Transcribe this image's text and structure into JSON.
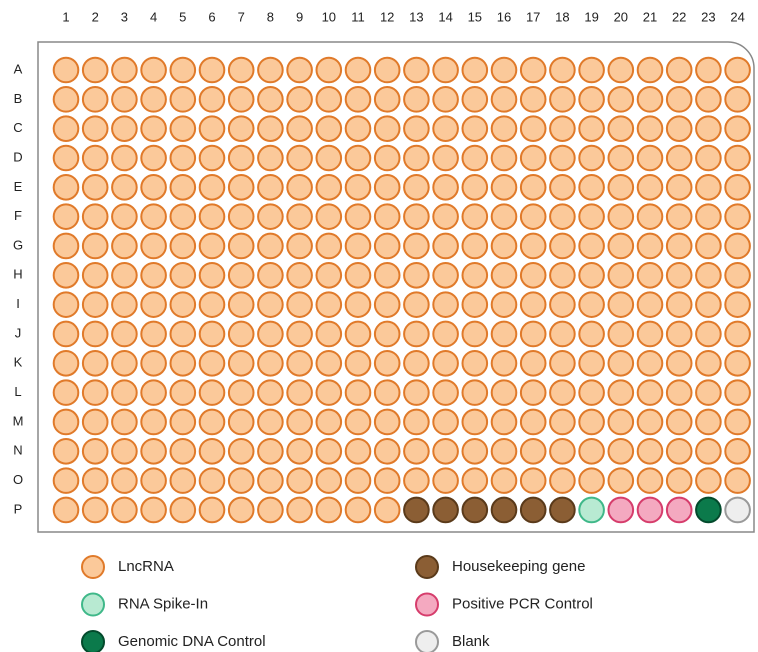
{
  "plate": {
    "columns": [
      "1",
      "2",
      "3",
      "4",
      "5",
      "6",
      "7",
      "8",
      "9",
      "10",
      "11",
      "12",
      "13",
      "14",
      "15",
      "16",
      "17",
      "18",
      "19",
      "20",
      "21",
      "22",
      "23",
      "24"
    ],
    "rows": [
      "A",
      "B",
      "C",
      "D",
      "E",
      "F",
      "G",
      "H",
      "I",
      "J",
      "K",
      "L",
      "M",
      "N",
      "O",
      "P"
    ]
  },
  "legend": [
    {
      "label": "LncRNA",
      "fill": "#fbc99a",
      "stroke": "#e07a2a"
    },
    {
      "label": "Housekeeping gene",
      "fill": "#8b5e34",
      "stroke": "#5a3a1a"
    },
    {
      "label": "RNA Spike-In",
      "fill": "#b8ead2",
      "stroke": "#3fb889"
    },
    {
      "label": "Positive PCR Control",
      "fill": "#f4a9c0",
      "stroke": "#d63d6c"
    },
    {
      "label": "Genomic DNA Control",
      "fill": "#0b7a4b",
      "stroke": "#034a2c"
    },
    {
      "label": "Blank",
      "fill": "#eeeeee",
      "stroke": "#9a9a9a"
    }
  ]
}
